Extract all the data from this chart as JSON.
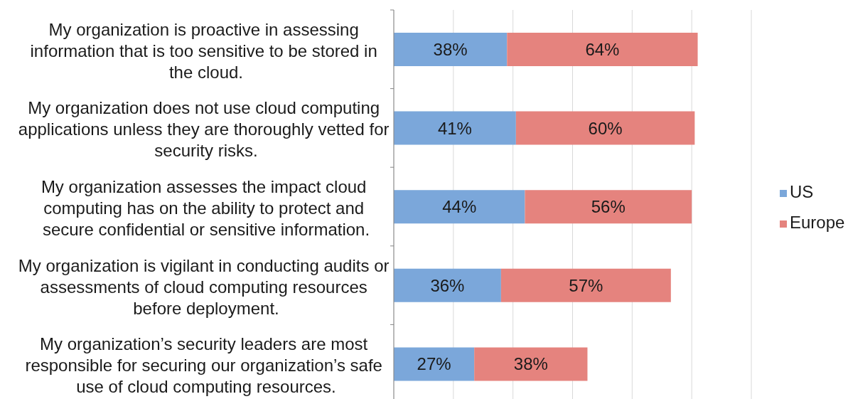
{
  "chart_data": {
    "type": "bar",
    "orientation": "horizontal",
    "stacked": true,
    "categories": [
      "My organization is proactive in assessing\ninformation that is too sensitive to be stored in\nthe cloud.",
      "My organization does not use cloud computing\napplications unless they are thoroughly vetted for\nsecurity risks.",
      "My organization assesses the impact cloud\ncomputing has on the ability to protect and\nsecure confidential or sensitive information.",
      "My organization is vigilant in conducting audits or\nassessments of cloud computing resources\nbefore deployment.",
      "My organization’s security leaders are most\nresponsible for securing our organization’s safe\nuse of cloud computing resources."
    ],
    "series": [
      {
        "name": "US",
        "color": "#7ba7da",
        "values": [
          38,
          41,
          44,
          36,
          27
        ],
        "value_labels": [
          "38%",
          "41%",
          "44%",
          "36%",
          "27%"
        ]
      },
      {
        "name": "Europe",
        "color": "#e5837e",
        "values": [
          64,
          60,
          56,
          57,
          38
        ],
        "value_labels": [
          "64%",
          "60%",
          "56%",
          "57%",
          "38%"
        ]
      }
    ],
    "xlim": [
      0,
      120
    ],
    "grid": "x",
    "legend": "right",
    "tick_labels": "y"
  }
}
